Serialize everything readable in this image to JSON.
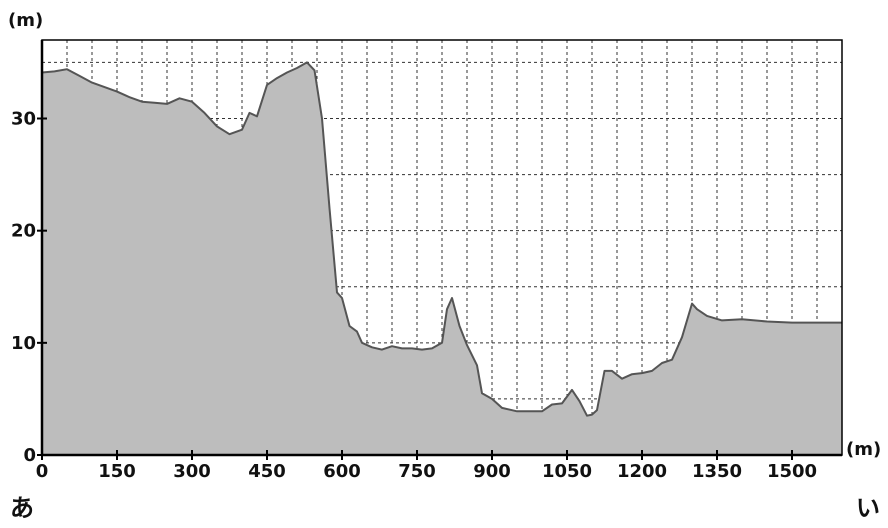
{
  "chart_data": {
    "type": "area",
    "xlabel": "(m)",
    "ylabel": "(m)",
    "xlim": [
      0,
      1600
    ],
    "ylim": [
      0,
      37
    ],
    "x_ticks": [
      0,
      150,
      300,
      450,
      600,
      750,
      900,
      1050,
      1200,
      1350,
      1500
    ],
    "x_tick_labels": [
      "0",
      "150",
      "300",
      "450",
      "600",
      "750",
      "900",
      "1050",
      "1200",
      "1350",
      "1500"
    ],
    "x_minor_step": 50,
    "y_ticks": [
      0,
      10,
      20,
      30
    ],
    "y_tick_labels": [
      "0",
      "10",
      "20",
      "30"
    ],
    "y_minor_step": 5,
    "grid": true,
    "legend": "none",
    "series": [
      {
        "x": [
          0,
          25,
          50,
          75,
          100,
          125,
          150,
          175,
          200,
          225,
          250,
          275,
          300,
          325,
          350,
          375,
          400,
          415,
          430,
          450,
          470,
          490,
          510,
          530,
          545,
          560,
          575,
          590,
          600,
          615,
          630,
          640,
          660,
          680,
          700,
          720,
          740,
          760,
          780,
          800,
          810,
          820,
          835,
          850,
          870,
          880,
          900,
          920,
          950,
          1000,
          1020,
          1040,
          1060,
          1075,
          1090,
          1100,
          1110,
          1125,
          1140,
          1160,
          1180,
          1200,
          1220,
          1240,
          1260,
          1280,
          1300,
          1310,
          1330,
          1360,
          1400,
          1450,
          1500,
          1550,
          1600
        ],
        "values": [
          34.1,
          34.2,
          34.4,
          33.8,
          33.2,
          32.8,
          32.4,
          31.9,
          31.5,
          31.4,
          31.3,
          31.8,
          31.5,
          30.5,
          29.3,
          28.6,
          29.0,
          30.5,
          30.2,
          33.0,
          33.6,
          34.1,
          34.5,
          35.0,
          34.3,
          30.0,
          22.0,
          14.5,
          14.0,
          11.5,
          11.0,
          10.0,
          9.6,
          9.4,
          9.7,
          9.5,
          9.5,
          9.4,
          9.5,
          10.0,
          13.0,
          14.0,
          11.5,
          9.8,
          8.0,
          5.5,
          5.0,
          4.2,
          3.9,
          3.9,
          4.5,
          4.6,
          5.8,
          4.8,
          3.5,
          3.6,
          4.0,
          7.5,
          7.5,
          6.8,
          7.2,
          7.3,
          7.5,
          8.2,
          8.5,
          10.5,
          13.5,
          13.0,
          12.4,
          12.0,
          12.1,
          11.9,
          11.8,
          11.8,
          11.8
        ]
      }
    ]
  },
  "corner_labels": {
    "left": "あ",
    "right": "い"
  },
  "colors": {
    "area_fill": "#bdbdbd",
    "line": "#555555",
    "grid": "#333333",
    "axis": "#000000"
  }
}
